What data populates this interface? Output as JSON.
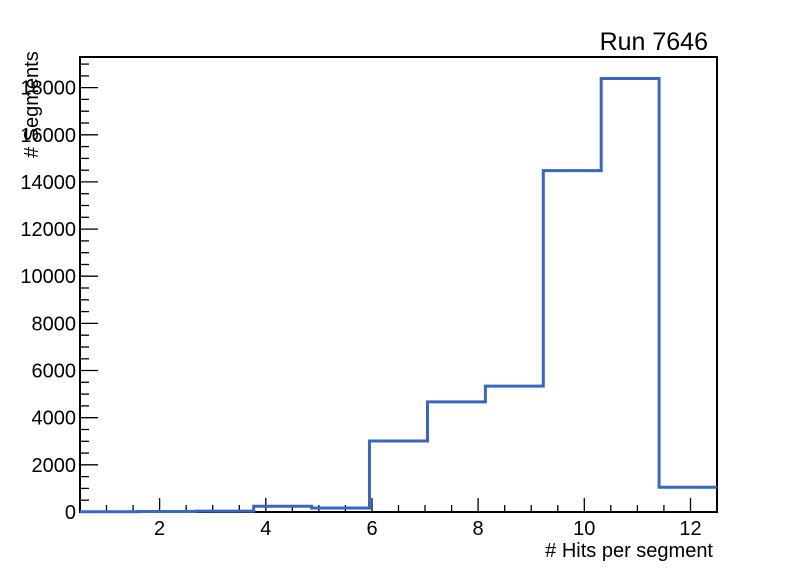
{
  "chart_data": {
    "type": "step-histogram",
    "title": "Run 7646",
    "xlabel": "# Hits per segment",
    "ylabel": "# Segments",
    "xlim": [
      0.5,
      12.5
    ],
    "ylim": [
      0,
      19300
    ],
    "n_bins": 11,
    "bin_edges": [
      0.5,
      1.5909,
      2.6818,
      3.7727,
      4.8636,
      5.9545,
      7.0455,
      8.1364,
      9.2273,
      10.3182,
      11.4091,
      12.5
    ],
    "counts": [
      10,
      20,
      40,
      240,
      170,
      3010,
      4670,
      5340,
      14480,
      18390,
      1050
    ],
    "x_ticks": {
      "major": [
        2,
        4,
        6,
        8,
        10,
        12
      ],
      "labels": [
        "2",
        "4",
        "6",
        "8",
        "10",
        "12"
      ],
      "minor_step": 0.5
    },
    "y_ticks": {
      "major": [
        0,
        2000,
        4000,
        6000,
        8000,
        10000,
        12000,
        14000,
        16000,
        18000
      ],
      "labels": [
        "0",
        "2000",
        "4000",
        "6000",
        "8000",
        "10000",
        "12000",
        "14000",
        "16000",
        "18000"
      ],
      "minor_step": 500
    },
    "grid": false,
    "legend": "none",
    "colors": {
      "line": "#3766c3",
      "axis": "#000000",
      "text": "#000000",
      "background": "#ffffff"
    }
  }
}
